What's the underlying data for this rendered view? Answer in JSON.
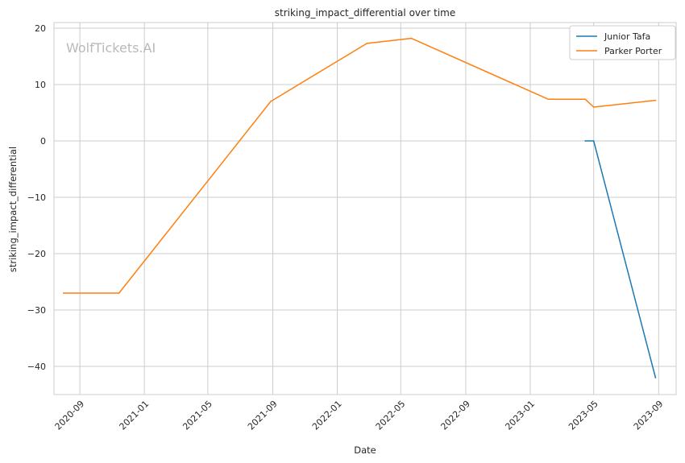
{
  "chart_data": {
    "type": "line",
    "title": "striking_impact_differential over time",
    "xlabel": "Date",
    "ylabel": "striking_impact_differential",
    "watermark": "WolfTickets.AI",
    "x_axis_kind": "date",
    "xlim": [
      "2020-07-14",
      "2023-10-04"
    ],
    "ylim": [
      -45,
      21
    ],
    "x_ticks": [
      {
        "date": "2020-09-01",
        "label": "2020-09"
      },
      {
        "date": "2021-01-01",
        "label": "2021-01"
      },
      {
        "date": "2021-05-01",
        "label": "2021-05"
      },
      {
        "date": "2021-09-01",
        "label": "2021-09"
      },
      {
        "date": "2022-01-01",
        "label": "2022-01"
      },
      {
        "date": "2022-05-01",
        "label": "2022-05"
      },
      {
        "date": "2022-09-01",
        "label": "2022-09"
      },
      {
        "date": "2023-01-01",
        "label": "2023-01"
      },
      {
        "date": "2023-05-01",
        "label": "2023-05"
      },
      {
        "date": "2023-09-01",
        "label": "2023-09"
      }
    ],
    "y_ticks": [
      {
        "value": 20,
        "label": "20"
      },
      {
        "value": 10,
        "label": "10"
      },
      {
        "value": 0,
        "label": "0"
      },
      {
        "value": -10,
        "label": "−10"
      },
      {
        "value": -20,
        "label": "−20"
      },
      {
        "value": -30,
        "label": "−30"
      },
      {
        "value": -40,
        "label": "−40"
      }
    ],
    "grid": true,
    "legend_position": "top-right",
    "series": [
      {
        "name": "Junior Tafa",
        "color": "#1f77b4",
        "points": [
          {
            "date": "2023-04-15",
            "value": 0
          },
          {
            "date": "2023-05-01",
            "value": 0
          },
          {
            "date": "2023-08-26",
            "value": -42
          }
        ]
      },
      {
        "name": "Parker Porter",
        "color": "#ff7f0e",
        "points": [
          {
            "date": "2020-08-01",
            "value": -27
          },
          {
            "date": "2020-11-14",
            "value": -27
          },
          {
            "date": "2021-08-28",
            "value": 7
          },
          {
            "date": "2022-02-26",
            "value": 17.3
          },
          {
            "date": "2022-05-21",
            "value": 18.2
          },
          {
            "date": "2023-02-04",
            "value": 7.4
          },
          {
            "date": "2023-04-15",
            "value": 7.4
          },
          {
            "date": "2023-05-01",
            "value": 6
          },
          {
            "date": "2023-08-26",
            "value": 7.2
          }
        ]
      }
    ]
  }
}
